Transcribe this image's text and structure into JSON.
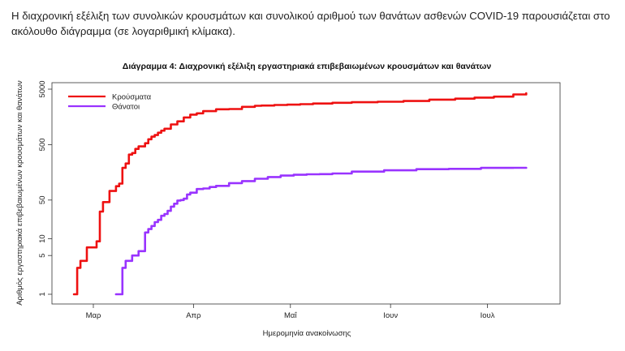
{
  "intro_text": "Η διαχρονική εξέλιξη των συνολικών κρουσμάτων και συνολικού αριθμού των θανάτων ασθενών COVID-19 παρουσιάζεται στο ακόλουθο διάγραμμα (σε λογαριθμική κλίμακα).",
  "chart_data": {
    "type": "line",
    "title": "Διάγραμμα 4: Διαχρονική εξέλιξη εργαστηριακά επιβεβαιωμένων κρουσμάτων και θανάτων",
    "xlabel": "Ημερομηνία ανακοίνωσης",
    "ylabel": "Αριθμός εργαστηριακά επιβεβαιωμένων κρουσμάτων και θανάτων",
    "y_scale": "log",
    "ylim": [
      1,
      5000
    ],
    "y_ticks": [
      1,
      5,
      10,
      50,
      500,
      5000
    ],
    "x_ticks": [
      {
        "label": "Μαρ",
        "day": 0
      },
      {
        "label": "Απρ",
        "day": 31
      },
      {
        "label": "Μαΐ",
        "day": 61
      },
      {
        "label": "Ιουν",
        "day": 92
      },
      {
        "label": "Ιουλ",
        "day": 122
      }
    ],
    "legend_position": "top-left",
    "series": [
      {
        "name": "Κρούσματα",
        "color": "#ee1111",
        "x": [
          -6,
          -5,
          -4,
          -3,
          -2,
          -1,
          0,
          1,
          2,
          3,
          4,
          5,
          6,
          7,
          8,
          9,
          10,
          11,
          12,
          13,
          14,
          15,
          16,
          17,
          18,
          19,
          20,
          21,
          22,
          24,
          26,
          28,
          30,
          32,
          34,
          38,
          42,
          46,
          50,
          52,
          56,
          60,
          64,
          68,
          74,
          80,
          88,
          96,
          104,
          112,
          118,
          124,
          130,
          134
        ],
        "values": [
          1,
          3,
          4,
          4,
          7,
          7,
          7,
          9,
          31,
          46,
          46,
          73,
          73,
          89,
          99,
          190,
          228,
          331,
          352,
          418,
          464,
          464,
          530,
          624,
          695,
          743,
          821,
          892,
          966,
          1156,
          1314,
          1544,
          1735,
          1832,
          2011,
          2170,
          2192,
          2401,
          2506,
          2534,
          2591,
          2626,
          2678,
          2760,
          2836,
          2909,
          2967,
          3058,
          3237,
          3376,
          3519,
          3672,
          4012,
          4227
        ]
      },
      {
        "name": "Θάνατοι",
        "color": "#9933ff",
        "x": [
          7,
          8,
          9,
          10,
          11,
          12,
          13,
          14,
          15,
          16,
          17,
          18,
          19,
          20,
          21,
          22,
          23,
          24,
          25,
          26,
          27,
          28,
          29,
          30,
          32,
          34,
          36,
          38,
          42,
          46,
          50,
          54,
          58,
          62,
          66,
          70,
          74,
          80,
          90,
          100,
          110,
          120,
          130,
          134
        ],
        "values": [
          1,
          1,
          3,
          4,
          4,
          5,
          5,
          6,
          6,
          13,
          15,
          17,
          20,
          22,
          26,
          28,
          32,
          38,
          43,
          49,
          50,
          53,
          63,
          68,
          79,
          81,
          86,
          90,
          101,
          110,
          121,
          130,
          138,
          143,
          146,
          147,
          151,
          163,
          172,
          180,
          183,
          190,
          191,
          191
        ]
      }
    ]
  }
}
